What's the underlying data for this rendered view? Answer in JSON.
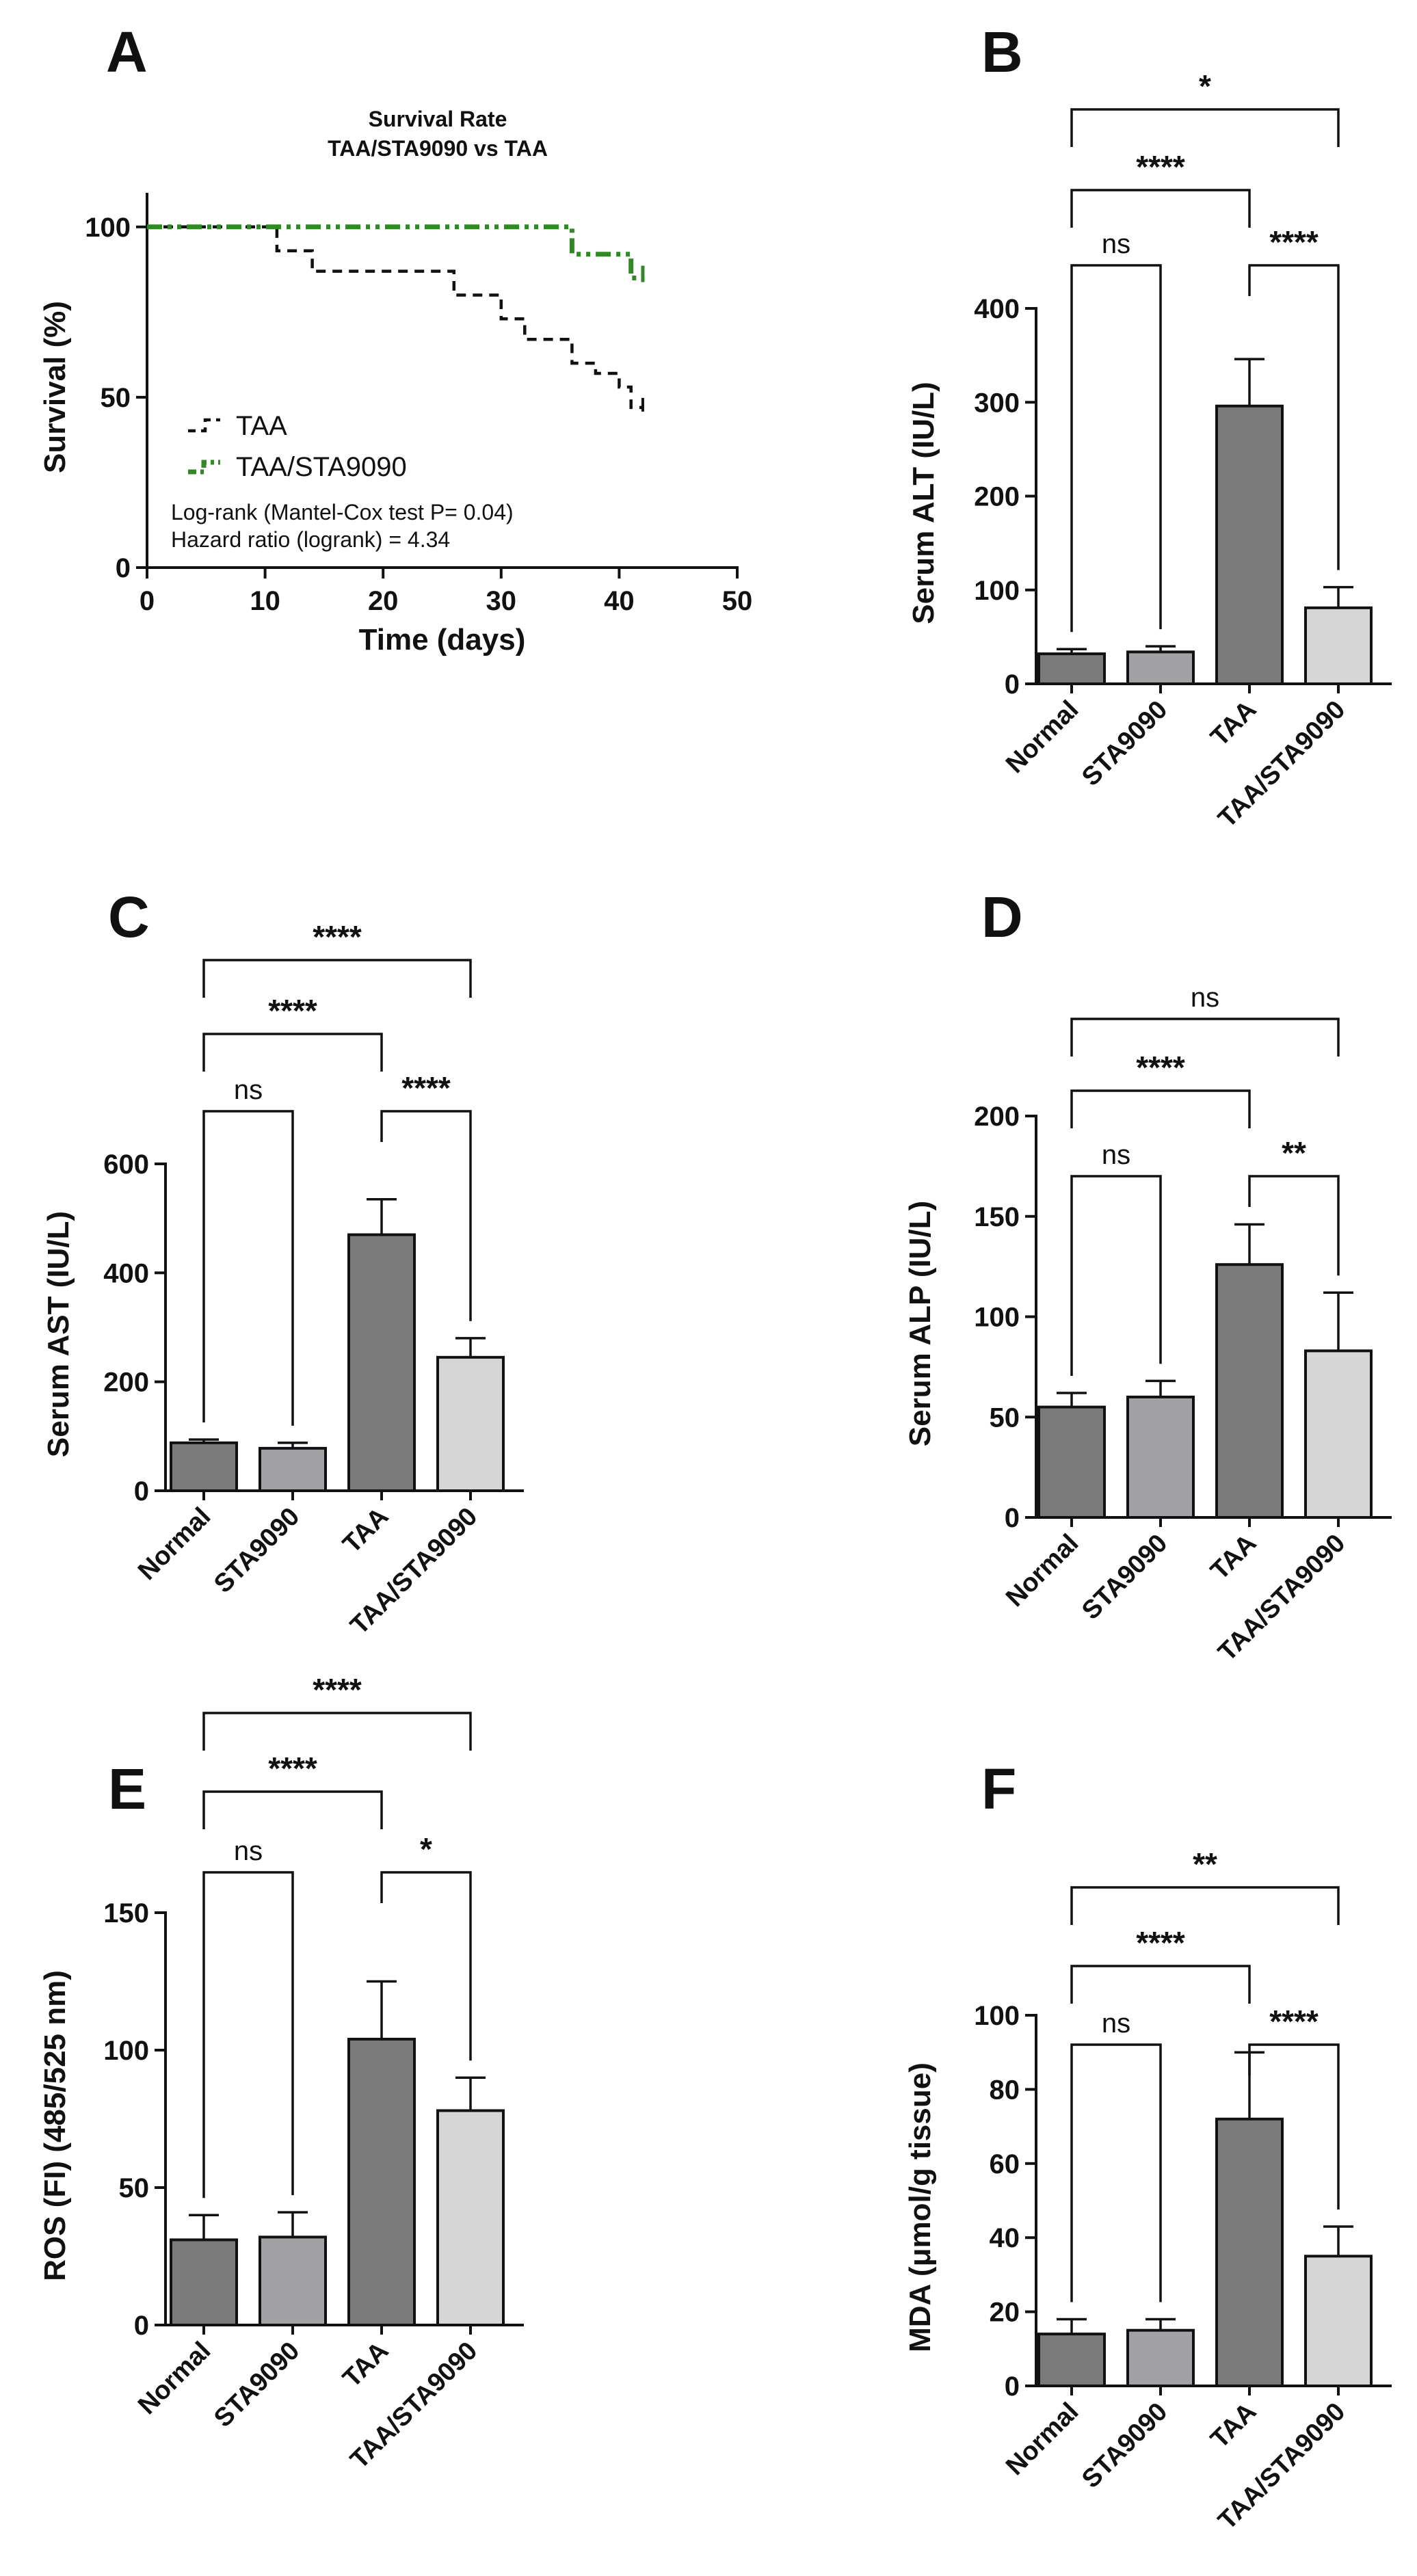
{
  "colors": {
    "taa_line": "#111111",
    "sta_line": "#2e8b22",
    "bar_normal": "#7a7a7a",
    "bar_sta9090": "#a2a2a6",
    "bar_taa": "#7a7a7a",
    "bar_taa_sta": "#d6d6d6",
    "axis": "#111111"
  },
  "chart_data": [
    {
      "panel": "A",
      "type": "line",
      "title": "Survival Rate",
      "subtitle": "TAA/STA9090 vs TAA",
      "xlabel": "Time (days)",
      "ylabel": "Survival (%)",
      "xlim": [
        0,
        50
      ],
      "ylim": [
        0,
        110
      ],
      "xticks": [
        0,
        10,
        20,
        30,
        40,
        50
      ],
      "yticks": [
        0,
        50,
        100
      ],
      "legend_position": "lower-left",
      "series": [
        {
          "name": "TAA",
          "style": "dashed-step",
          "x": [
            0,
            11,
            11,
            14,
            14,
            26,
            26,
            30,
            30,
            32,
            32,
            36,
            36,
            38,
            38,
            40,
            40,
            41,
            41,
            42
          ],
          "y": [
            100,
            100,
            93,
            93,
            87,
            87,
            80,
            80,
            73,
            73,
            67,
            67,
            60,
            60,
            57,
            57,
            53,
            53,
            47,
            47
          ]
        },
        {
          "name": "TAA/STA9090",
          "style": "dashdot-step",
          "x": [
            0,
            36,
            36,
            41,
            41,
            42
          ],
          "y": [
            100,
            100,
            92,
            92,
            85,
            85
          ]
        }
      ],
      "annotations": [
        "Log-rank (Mantel-Cox test P= 0.04)",
        "Hazard ratio (logrank) = 4.34"
      ]
    },
    {
      "panel": "B",
      "type": "bar",
      "ylabel": "Serum ALT (IU/L)",
      "categories": [
        "Normal",
        "STA9090",
        "TAA",
        "TAA/STA9090"
      ],
      "values": [
        32,
        34,
        296,
        81
      ],
      "errors": [
        5,
        6,
        50,
        22
      ],
      "ylim": [
        0,
        400
      ],
      "yticks": [
        0,
        100,
        200,
        300,
        400
      ],
      "comparisons": [
        {
          "from": 0,
          "to": 1,
          "label": "ns"
        },
        {
          "from": 2,
          "to": 3,
          "label": "****"
        },
        {
          "from": 0,
          "to": 2,
          "label": "****"
        },
        {
          "from": 0,
          "to": 3,
          "label": "*"
        }
      ]
    },
    {
      "panel": "C",
      "type": "bar",
      "ylabel": "Serum AST (IU/L)",
      "categories": [
        "Normal",
        "STA9090",
        "TAA",
        "TAA/STA9090"
      ],
      "values": [
        88,
        78,
        470,
        245
      ],
      "errors": [
        6,
        10,
        65,
        35
      ],
      "ylim": [
        0,
        600
      ],
      "yticks": [
        0,
        200,
        400,
        600
      ],
      "comparisons": [
        {
          "from": 0,
          "to": 1,
          "label": "ns"
        },
        {
          "from": 2,
          "to": 3,
          "label": "****"
        },
        {
          "from": 0,
          "to": 2,
          "label": "****"
        },
        {
          "from": 0,
          "to": 3,
          "label": "****"
        }
      ]
    },
    {
      "panel": "D",
      "type": "bar",
      "ylabel": "Serum ALP (IU/L)",
      "categories": [
        "Normal",
        "STA9090",
        "TAA",
        "TAA/STA9090"
      ],
      "values": [
        55,
        60,
        126,
        83
      ],
      "errors": [
        7,
        8,
        20,
        29
      ],
      "ylim": [
        0,
        200
      ],
      "yticks": [
        0,
        50,
        100,
        150,
        200
      ],
      "comparisons": [
        {
          "from": 0,
          "to": 1,
          "label": "ns"
        },
        {
          "from": 2,
          "to": 3,
          "label": "**"
        },
        {
          "from": 0,
          "to": 2,
          "label": "****"
        },
        {
          "from": 0,
          "to": 3,
          "label": "ns"
        }
      ]
    },
    {
      "panel": "E",
      "type": "bar",
      "ylabel": "ROS (FI) (485/525 nm)",
      "categories": [
        "Normal",
        "STA9090",
        "TAA",
        "TAA/STA9090"
      ],
      "values": [
        31,
        32,
        104,
        78
      ],
      "errors": [
        9,
        9,
        21,
        12
      ],
      "ylim": [
        0,
        150
      ],
      "yticks": [
        0,
        50,
        100,
        150
      ],
      "comparisons": [
        {
          "from": 0,
          "to": 1,
          "label": "ns"
        },
        {
          "from": 2,
          "to": 3,
          "label": "*"
        },
        {
          "from": 0,
          "to": 2,
          "label": "****"
        },
        {
          "from": 0,
          "to": 3,
          "label": "****"
        }
      ]
    },
    {
      "panel": "F",
      "type": "bar",
      "ylabel": "MDA (μmol/g tissue)",
      "categories": [
        "Normal",
        "STA9090",
        "TAA",
        "TAA/STA9090"
      ],
      "values": [
        14,
        15,
        72,
        35
      ],
      "errors": [
        4,
        3,
        18,
        8
      ],
      "ylim": [
        0,
        100
      ],
      "yticks": [
        0,
        20,
        40,
        60,
        80,
        100
      ],
      "comparisons": [
        {
          "from": 0,
          "to": 1,
          "label": "ns"
        },
        {
          "from": 2,
          "to": 3,
          "label": "****"
        },
        {
          "from": 0,
          "to": 2,
          "label": "****"
        },
        {
          "from": 0,
          "to": 3,
          "label": "**"
        }
      ]
    }
  ]
}
